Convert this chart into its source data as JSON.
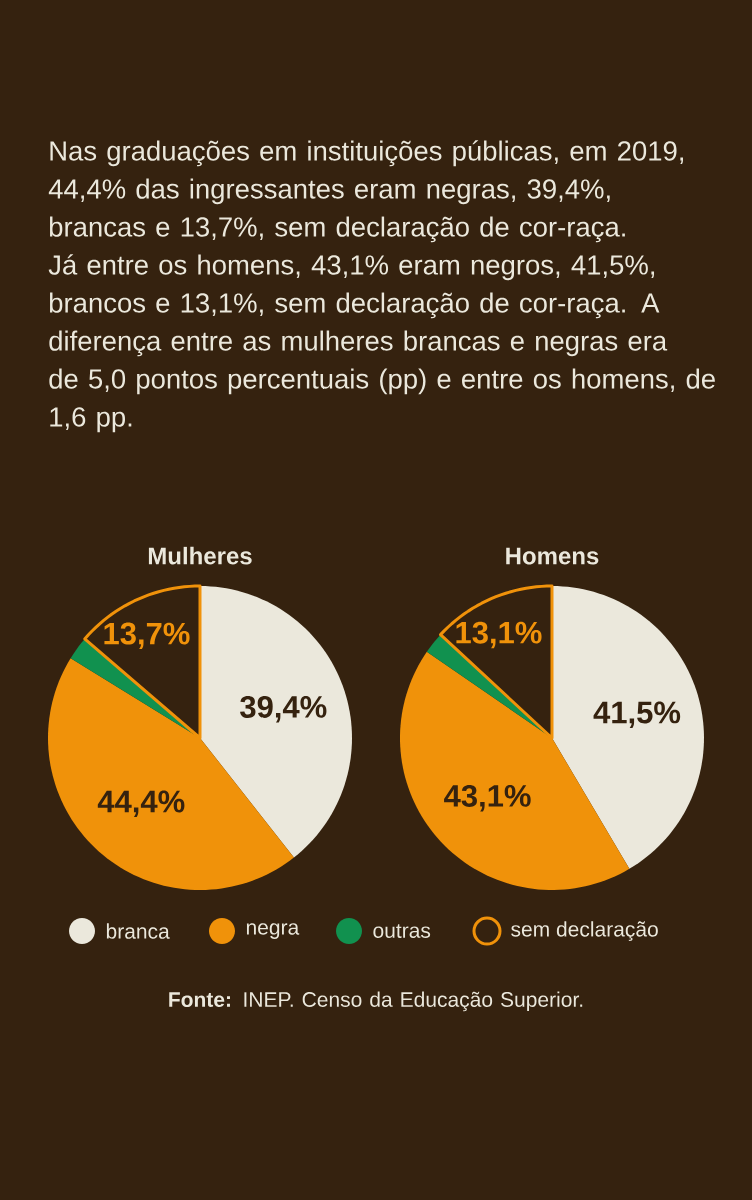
{
  "chart_data": [
    {
      "type": "pie",
      "title": "Mulheres",
      "subtitle": "Nas graduações em instituições públicas, em 2019, 44,4% das ingressantes eram negras, 39,4%, brancas e 13,7%, sem declaração de cor-raça. Já entre os homens, 43,1% eram negros, 41,5%, brancos e 13,1%, sem declaração de cor-raça. A diferença entre as mulheres brancas e negras era de 5,0 pontos percentuais (pp) e entre os homens, de 1,6 pp.",
      "categories": [
        "branca",
        "negra",
        "outras",
        "sem declaração"
      ],
      "values": [
        39.4,
        44.4,
        2.5,
        13.7
      ],
      "colors": [
        "#ebe8dc",
        "#f0920a",
        "#11914f",
        "#35220f"
      ],
      "value_labels": [
        "39,4%",
        "44,4%",
        null,
        "13,7%"
      ],
      "legend": "bottom"
    },
    {
      "type": "pie",
      "title": "Homens",
      "categories": [
        null,
        null,
        null,
        null
      ],
      "values": [
        41.5,
        43.1,
        2.3,
        13.1
      ],
      "colors": [
        "#ebe8dc",
        "#f0920a",
        "#11914f",
        "#35220f"
      ],
      "value_labels": [
        "41,5%",
        "43,1%",
        null,
        "13,1%"
      ],
      "annotations": [
        "**Fonte:** INEP. Censo da Educação Superior."
      ]
    }
  ]
}
